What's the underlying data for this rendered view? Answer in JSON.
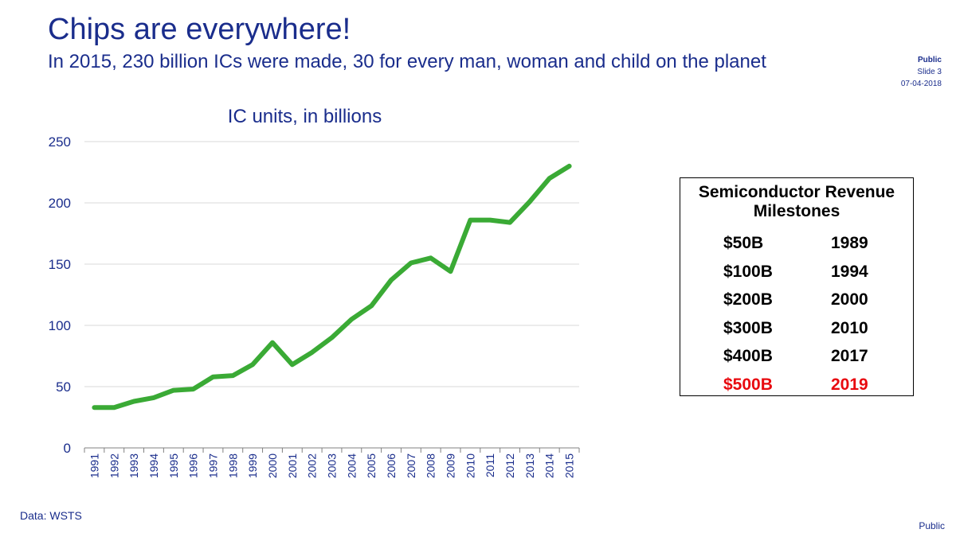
{
  "slide": {
    "title": "Chips are everywhere!",
    "subtitle": "In 2015, 230 billion ICs were made, 30 for every man, woman and child on the planet",
    "classification": "Public",
    "slide_number": "Slide 3",
    "date": "07-04-2018",
    "source": "Data: WSTS",
    "footer_classification": "Public"
  },
  "chart_data": {
    "type": "line",
    "title": "IC units, in billions",
    "xlabel": "",
    "ylabel": "",
    "categories": [
      "1991",
      "1992",
      "1993",
      "1994",
      "1995",
      "1996",
      "1997",
      "1998",
      "1999",
      "2000",
      "2001",
      "2002",
      "2003",
      "2004",
      "2005",
      "2006",
      "2007",
      "2008",
      "2009",
      "2010",
      "2011",
      "2012",
      "2013",
      "2014",
      "2015"
    ],
    "series": [
      {
        "values": [
          33,
          33,
          38,
          41,
          47,
          48,
          58,
          59,
          68,
          86,
          68,
          78,
          90,
          105,
          116,
          137,
          151,
          155,
          144,
          186,
          186,
          184,
          201,
          220,
          230
        ],
        "color": "#3aaa35"
      }
    ],
    "ylim": [
      0,
      250
    ],
    "yticks": [
      0,
      50,
      100,
      150,
      200,
      250
    ],
    "grid": true,
    "legend": "none"
  },
  "milestones": {
    "title": "Semiconductor Revenue Milestones",
    "rows": [
      {
        "amount": "$50B",
        "year": "1989",
        "highlight": false
      },
      {
        "amount": "$100B",
        "year": "1994",
        "highlight": false
      },
      {
        "amount": "$200B",
        "year": "2000",
        "highlight": false
      },
      {
        "amount": "$300B",
        "year": "2010",
        "highlight": false
      },
      {
        "amount": "$400B",
        "year": "2017",
        "highlight": false
      },
      {
        "amount": "$500B",
        "year": "2019",
        "highlight": true
      }
    ],
    "highlight_color": "#e8090f"
  }
}
